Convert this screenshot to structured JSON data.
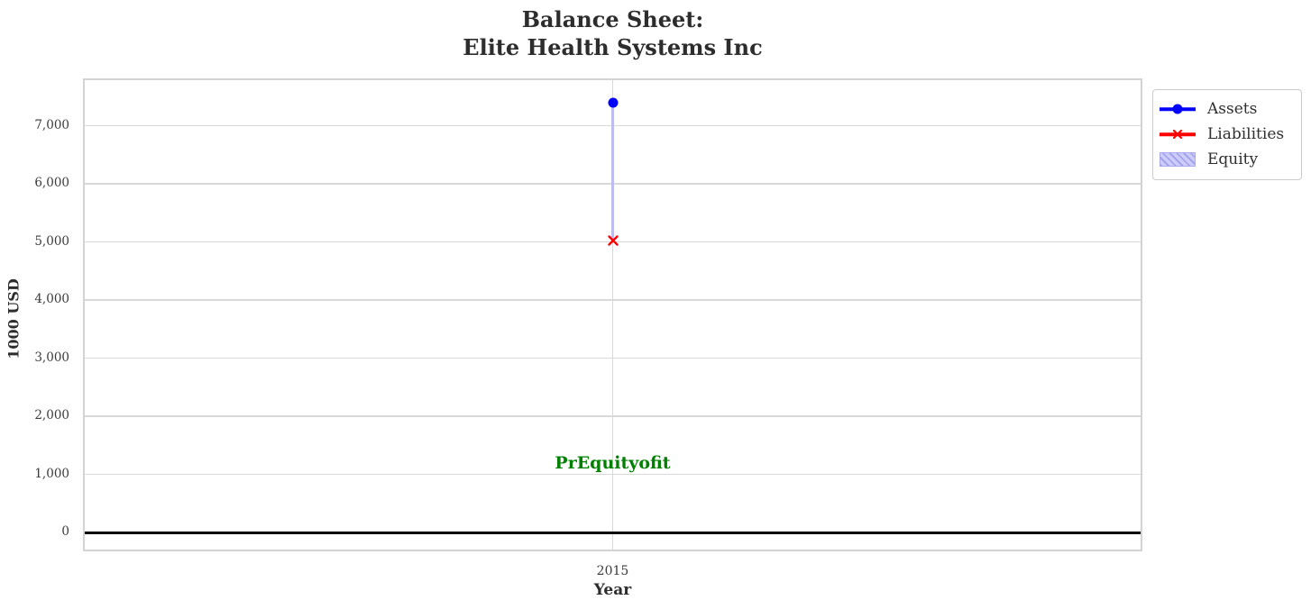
{
  "title": {
    "line1": "Balance Sheet:",
    "line2": "Elite Health Systems Inc"
  },
  "chart_data": {
    "type": "line",
    "title": "Balance Sheet: Elite Health Systems Inc",
    "xlabel": "Year",
    "ylabel": "1000 USD",
    "x": [
      2015
    ],
    "x_tick_labels": [
      "2015"
    ],
    "series": [
      {
        "name": "Assets",
        "type": "line",
        "marker": "circle",
        "color": "#0000ff",
        "values": [
          7400
        ]
      },
      {
        "name": "Liabilities",
        "type": "line",
        "marker": "x",
        "color": "#ff0000",
        "values": [
          5030
        ]
      },
      {
        "name": "Equity",
        "type": "bar",
        "hatch": "///",
        "color": "#ccccfa",
        "edge_color": "#aaaaee",
        "values": [
          2370
        ],
        "bottom": [
          5030
        ]
      }
    ],
    "annotation": {
      "text": "PrEquityofit",
      "x": 2015,
      "y": 1200,
      "color": "#008000"
    },
    "y_ticks": [
      0,
      1000,
      2000,
      3000,
      4000,
      5000,
      6000,
      7000
    ],
    "y_tick_labels": [
      "0",
      "1,000",
      "2,000",
      "3,000",
      "4,000",
      "5,000",
      "6,000",
      "7,000"
    ],
    "ylim": [
      -350,
      7810
    ],
    "grid": true,
    "zero_line": true,
    "legend": {
      "position": "outside upper right",
      "entries": [
        "Assets",
        "Liabilities",
        "Equity"
      ]
    }
  }
}
